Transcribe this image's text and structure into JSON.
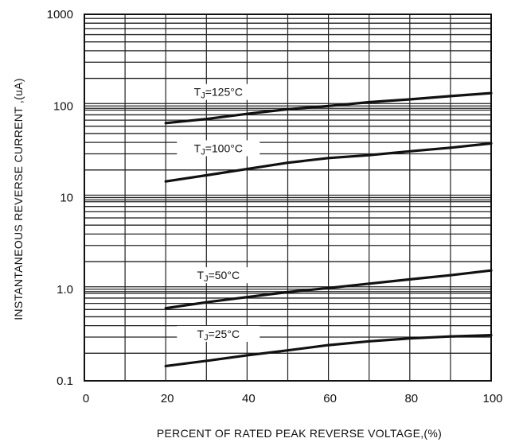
{
  "chart_data": {
    "type": "line",
    "xlabel": "PERCENT OF RATED PEAK REVERSE VOLTAGE,(%)",
    "ylabel": "INSTANTANEOUS REVERSE CURRENT ,(uA)",
    "xlim": [
      0,
      100
    ],
    "ylim": [
      0.1,
      1000
    ],
    "yscale": "log",
    "grid": true,
    "x_ticks": [
      0,
      20,
      40,
      60,
      80,
      100
    ],
    "x_tick_labels": [
      "0",
      "20",
      "40",
      "60",
      "80",
      "100"
    ],
    "y_ticks": [
      0.1,
      1,
      10,
      100,
      1000
    ],
    "y_tick_labels": [
      "0.1",
      "1.0",
      "10",
      "100",
      "1000"
    ],
    "series": [
      {
        "name": "TJ=125°C",
        "name_main": "T",
        "name_sub": "J",
        "name_rest": "=125°C",
        "x": [
          20,
          30,
          40,
          50,
          60,
          70,
          80,
          90,
          100
        ],
        "y": [
          65,
          72,
          82,
          92,
          100,
          110,
          118,
          128,
          138
        ]
      },
      {
        "name": "TJ=100°C",
        "name_main": "T",
        "name_sub": "J",
        "name_rest": "=100°C",
        "x": [
          20,
          30,
          40,
          50,
          60,
          70,
          80,
          90,
          100
        ],
        "y": [
          15,
          17.5,
          20.5,
          24,
          27,
          29,
          32,
          35,
          39
        ]
      },
      {
        "name": "TJ=50°C",
        "name_main": "T",
        "name_sub": "J",
        "name_rest": "=50°C",
        "x": [
          20,
          30,
          40,
          50,
          60,
          70,
          80,
          90,
          100
        ],
        "y": [
          0.62,
          0.72,
          0.82,
          0.93,
          1.03,
          1.15,
          1.28,
          1.42,
          1.6
        ]
      },
      {
        "name": "TJ=25°C",
        "name_main": "T",
        "name_sub": "J",
        "name_rest": "=25°C",
        "x": [
          20,
          30,
          40,
          50,
          60,
          70,
          80,
          90,
          100
        ],
        "y": [
          0.145,
          0.165,
          0.19,
          0.215,
          0.245,
          0.27,
          0.29,
          0.305,
          0.315
        ]
      }
    ]
  }
}
